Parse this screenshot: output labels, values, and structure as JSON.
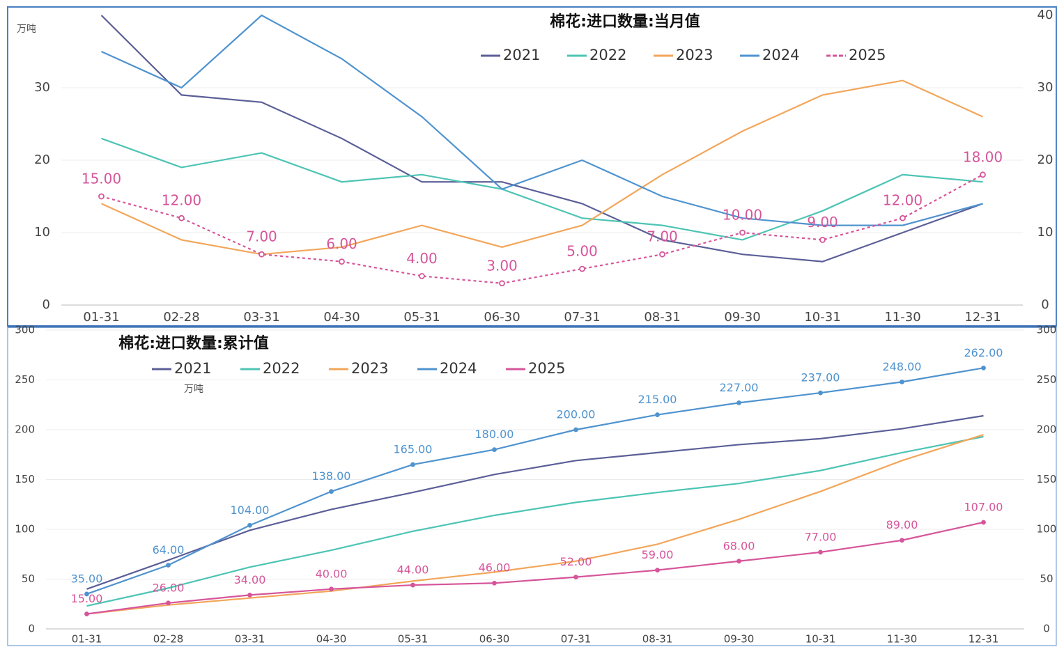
{
  "chart_data": [
    {
      "type": "line",
      "title": "棉花:进口数量:当月值",
      "unit": "万吨",
      "categories": [
        "01-31",
        "02-28",
        "03-31",
        "04-30",
        "05-31",
        "06-30",
        "07-31",
        "08-31",
        "09-30",
        "10-31",
        "11-30",
        "12-31"
      ],
      "ylim": [
        0,
        40
      ],
      "yticks": [
        0,
        10,
        20,
        30
      ],
      "y2lim": [
        0,
        40
      ],
      "y2ticks": [
        0,
        10,
        20,
        30,
        40
      ],
      "grid": true,
      "legend": "top",
      "series": [
        {
          "name": "2021",
          "color": "#5b5f97",
          "values": [
            40,
            29,
            28,
            23,
            17,
            17,
            14,
            9,
            7,
            6,
            10,
            14
          ]
        },
        {
          "name": "2022",
          "color": "#4dc4b4",
          "values": [
            23,
            19,
            21,
            17,
            18,
            16,
            12,
            11,
            9,
            13,
            18,
            17
          ]
        },
        {
          "name": "2023",
          "color": "#f2a65a",
          "values": [
            14,
            9,
            7,
            8,
            11,
            8,
            11,
            18,
            24,
            29,
            31,
            26
          ]
        },
        {
          "name": "2024",
          "color": "#4f93cf",
          "values": [
            35,
            30,
            40,
            34,
            26,
            16,
            20,
            15,
            12,
            11,
            11,
            14
          ]
        },
        {
          "name": "2025",
          "color": "#d6559a",
          "dashed": true,
          "markers": true,
          "values": [
            15,
            12,
            7,
            6,
            4,
            3,
            5,
            7,
            10,
            9,
            12,
            18
          ],
          "value_labels": [
            "15.00",
            "12.00",
            "7.00",
            "6.00",
            "4.00",
            "3.00",
            "5.00",
            "7.00",
            "10.00",
            "9.00",
            "12.00",
            "18.00"
          ]
        }
      ]
    },
    {
      "type": "line",
      "title": "棉花:进口数量:累计值",
      "unit": "万吨",
      "categories": [
        "01-31",
        "02-28",
        "03-31",
        "04-30",
        "05-31",
        "06-30",
        "07-31",
        "08-31",
        "09-30",
        "10-31",
        "11-30",
        "12-31"
      ],
      "ylim": [
        0,
        300
      ],
      "yticks": [
        0,
        50,
        100,
        150,
        200,
        250,
        300
      ],
      "y2lim": [
        0,
        300
      ],
      "y2ticks": [
        0,
        50,
        100,
        150,
        200,
        250,
        300
      ],
      "grid": true,
      "legend": "top",
      "series": [
        {
          "name": "2021",
          "color": "#5b5f97",
          "values": [
            40,
            69,
            99,
            120,
            137,
            155,
            169,
            177,
            185,
            191,
            201,
            214
          ]
        },
        {
          "name": "2022",
          "color": "#4dc4b4",
          "values": [
            23,
            41,
            62,
            79,
            98,
            114,
            127,
            137,
            146,
            159,
            177,
            193
          ]
        },
        {
          "name": "2023",
          "color": "#f2a65a",
          "values": [
            15,
            24,
            31,
            38,
            48,
            57,
            68,
            85,
            110,
            138,
            169,
            195
          ]
        },
        {
          "name": "2024",
          "color": "#4f93cf",
          "markers": true,
          "values": [
            35,
            64,
            104,
            138,
            165,
            180,
            200,
            215,
            227,
            237,
            248,
            262
          ],
          "value_labels": [
            "35.00",
            "64.00",
            "104.00",
            "138.00",
            "165.00",
            "180.00",
            "200.00",
            "215.00",
            "227.00",
            "237.00",
            "248.00",
            "262.00"
          ]
        },
        {
          "name": "2025",
          "color": "#d6559a",
          "markers": true,
          "values": [
            15,
            26,
            34,
            40,
            44,
            46,
            52,
            59,
            68,
            77,
            89,
            107
          ],
          "value_labels": [
            "15.00",
            "26.00",
            "34.00",
            "40.00",
            "44.00",
            "46.00",
            "52.00",
            "59.00",
            "68.00",
            "77.00",
            "89.00",
            "107.00"
          ]
        }
      ]
    }
  ]
}
